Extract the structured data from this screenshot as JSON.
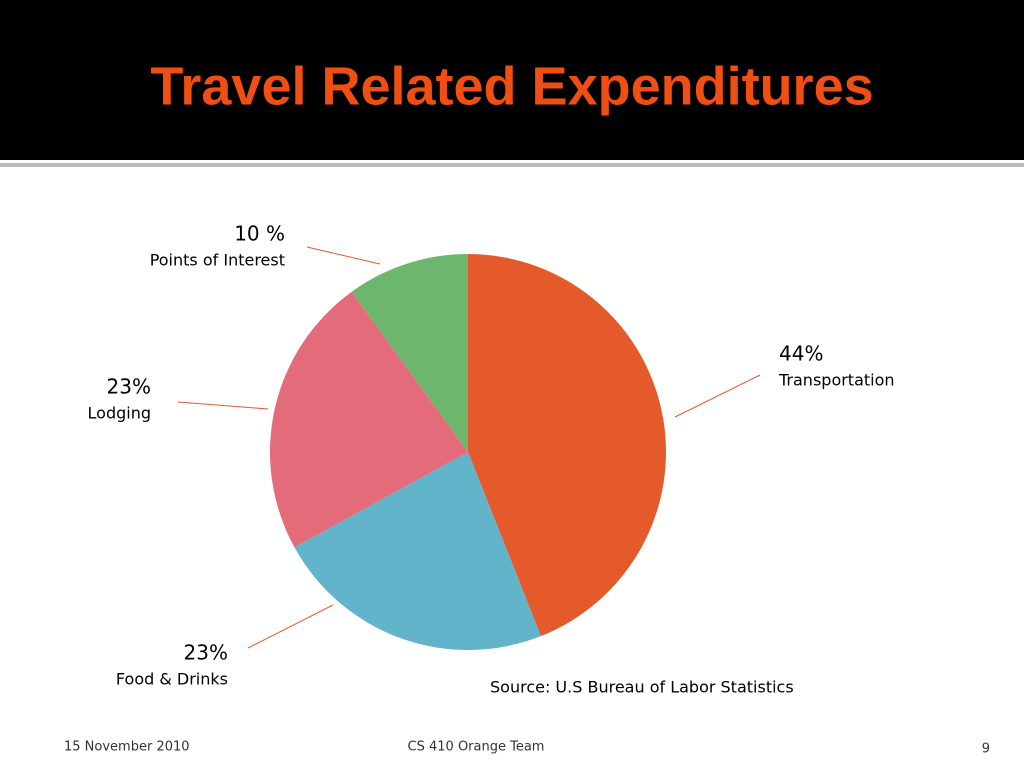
{
  "chart_data": {
    "type": "pie",
    "title": "Travel Related Expenditures",
    "categories": [
      "Transportation",
      "Food & Drinks",
      "Lodging",
      "Points of Interest"
    ],
    "values": [
      44,
      23,
      23,
      10
    ],
    "value_labels": [
      "44%",
      "23%",
      "23%",
      "10 %"
    ],
    "colors": [
      "#e55a2b",
      "#62b4cb",
      "#e46b7a",
      "#6db66d"
    ],
    "source": "Source:  U.S Bureau of Labor Statistics"
  },
  "footer": {
    "date": "15 November 2010",
    "team": "CS 410 Orange Team",
    "page": "9"
  }
}
